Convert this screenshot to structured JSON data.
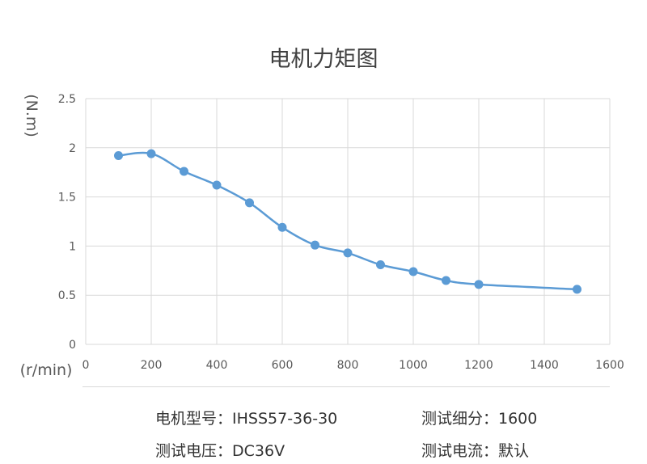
{
  "chart_data": {
    "type": "line",
    "title": "电机力矩图",
    "xlabel": "(r/min)",
    "ylabel": "(N.m)",
    "xlim": [
      0,
      1600
    ],
    "ylim": [
      0,
      2.5
    ],
    "x_ticks": [
      "0",
      "200",
      "400",
      "600",
      "800",
      "1000",
      "1200",
      "1400",
      "1600"
    ],
    "y_ticks": [
      "0",
      "0.5",
      "1",
      "1.5",
      "2",
      "2.5"
    ],
    "grid": true,
    "smooth": true,
    "series": [
      {
        "x": [
          100,
          200,
          300,
          400,
          500,
          600,
          700,
          800,
          900,
          1000,
          1100,
          1200,
          1500
        ],
        "y": [
          1.92,
          1.94,
          1.76,
          1.62,
          1.44,
          1.19,
          1.01,
          0.93,
          0.81,
          0.74,
          0.65,
          0.61,
          0.56
        ]
      }
    ]
  },
  "specs": {
    "model": "电机型号：IHSS57-36-30",
    "subdivision": "测试细分：1600",
    "voltage": "测试电压：DC36V",
    "current": "测试电流：默认"
  },
  "colors": {
    "line": "#5b9bd5",
    "grid": "#d9d9d9",
    "axis_text": "#595959"
  }
}
